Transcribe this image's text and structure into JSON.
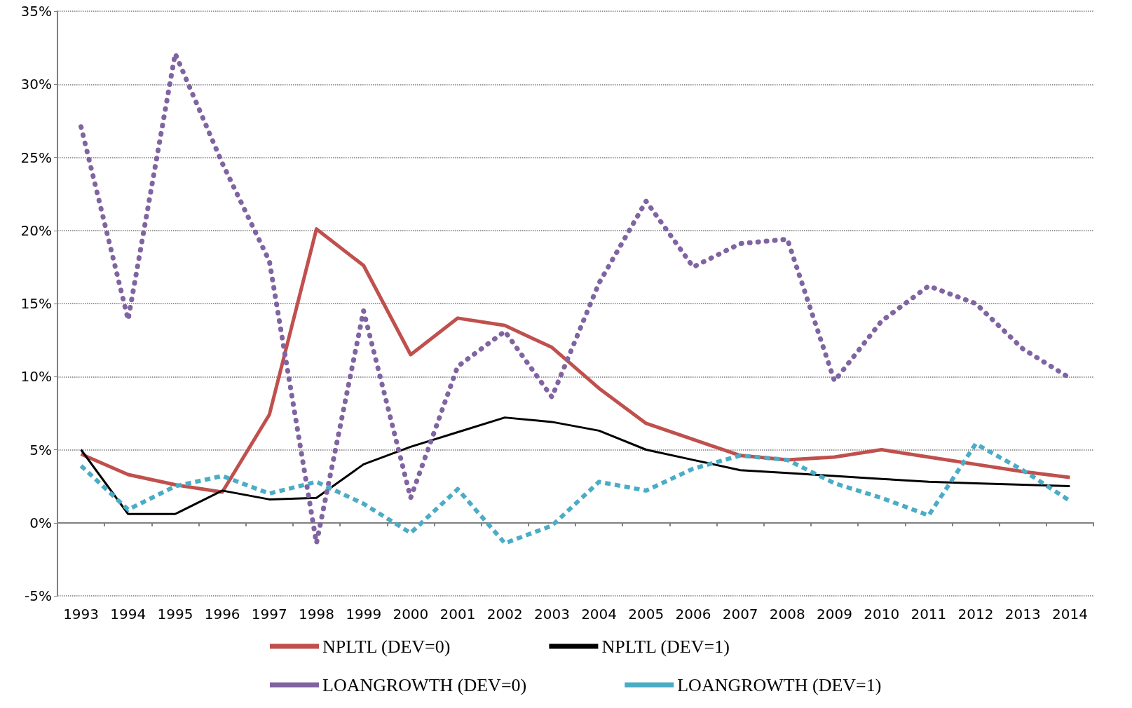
{
  "chart_data": {
    "type": "line",
    "categories": [
      "1993",
      "1994",
      "1995",
      "1996",
      "1997",
      "1998",
      "1999",
      "2000",
      "2001",
      "2002",
      "2003",
      "2004",
      "2005",
      "2006",
      "2007",
      "2008",
      "2009",
      "2010",
      "2011",
      "2012",
      "2013",
      "2014"
    ],
    "series": [
      {
        "name": "NPLTL (DEV=0)",
        "color": "#c0504d",
        "line_style": "solid",
        "values": [
          4.7,
          3.3,
          2.6,
          2.1,
          7.4,
          20.1,
          17.6,
          11.5,
          14.0,
          13.5,
          12.0,
          9.2,
          6.8,
          5.7,
          4.6,
          4.3,
          4.5,
          5.0,
          4.5,
          4.0,
          3.5,
          3.1
        ]
      },
      {
        "name": "NPLTL (DEV=1)",
        "color": "#000000",
        "line_style": "solid",
        "values": [
          5.0,
          0.6,
          0.6,
          2.2,
          1.6,
          1.7,
          4.0,
          5.2,
          6.2,
          7.2,
          6.9,
          6.3,
          5.0,
          4.3,
          3.6,
          3.4,
          3.2,
          3.0,
          2.8,
          2.7,
          2.6,
          2.5
        ]
      },
      {
        "name": "LOANGROWTH (DEV=0)",
        "color": "#8064a2",
        "line_style": "dotted",
        "values": [
          27.1,
          13.9,
          32.1,
          24.6,
          17.9,
          -1.4,
          14.5,
          1.7,
          10.7,
          13.1,
          8.6,
          16.4,
          22.0,
          17.5,
          19.1,
          19.4,
          9.7,
          13.8,
          16.2,
          15.0,
          11.9,
          9.9
        ]
      },
      {
        "name": "LOANGROWTH (DEV=1)",
        "color": "#4bacc6",
        "line_style": "dashed",
        "values": [
          3.9,
          0.9,
          2.5,
          3.2,
          2.0,
          2.8,
          1.3,
          -0.7,
          2.3,
          -1.4,
          -0.2,
          2.8,
          2.2,
          3.7,
          4.6,
          4.3,
          2.7,
          1.7,
          0.5,
          5.4,
          3.6,
          1.5
        ]
      }
    ],
    "ylim": [
      -5,
      35
    ],
    "yticks": [
      {
        "value": -5,
        "label": "-5%"
      },
      {
        "value": 0,
        "label": "0%"
      },
      {
        "value": 5,
        "label": "5%"
      },
      {
        "value": 10,
        "label": "10%"
      },
      {
        "value": 15,
        "label": "15%"
      },
      {
        "value": 20,
        "label": "20%"
      },
      {
        "value": 25,
        "label": "25%"
      },
      {
        "value": 30,
        "label": "30%"
      },
      {
        "value": 35,
        "label": "35%"
      }
    ],
    "grid": "y",
    "legend": "bottom",
    "marker": "none"
  }
}
